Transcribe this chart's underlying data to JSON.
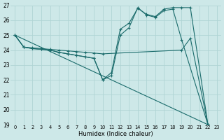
{
  "xlabel": "Humidex (Indice chaleur)",
  "xlim": [
    -0.5,
    23.5
  ],
  "ylim": [
    19,
    27
  ],
  "yticks": [
    19,
    20,
    21,
    22,
    23,
    24,
    25,
    26,
    27
  ],
  "xticks": [
    0,
    1,
    2,
    3,
    4,
    5,
    6,
    7,
    8,
    9,
    10,
    11,
    12,
    13,
    14,
    15,
    16,
    17,
    18,
    19,
    20,
    21,
    22,
    23
  ],
  "bg_color": "#cde8e8",
  "grid_color": "#b0d4d4",
  "line_color": "#1a6b6b",
  "line1_x": [
    0,
    1,
    2,
    3,
    4,
    5,
    6,
    7,
    8,
    9,
    10,
    11,
    12,
    13,
    14,
    15,
    16,
    17,
    18,
    19,
    20,
    22
  ],
  "line1_y": [
    25.0,
    24.2,
    24.1,
    24.05,
    24.0,
    23.85,
    23.75,
    23.65,
    23.55,
    23.45,
    22.0,
    22.5,
    25.4,
    25.8,
    26.8,
    26.4,
    26.25,
    26.75,
    26.85,
    26.85,
    26.85,
    19.0
  ],
  "line2_x": [
    0,
    1,
    2,
    3,
    4,
    5,
    6,
    7,
    8,
    9,
    10,
    11,
    12,
    13,
    14,
    15,
    16,
    17,
    18,
    19,
    22
  ],
  "line2_y": [
    25.0,
    24.2,
    24.1,
    24.05,
    24.0,
    23.85,
    23.75,
    23.65,
    23.55,
    23.45,
    22.0,
    22.3,
    25.0,
    25.5,
    26.85,
    26.35,
    26.2,
    26.65,
    26.75,
    24.7,
    19.0
  ],
  "line3_x": [
    0,
    1,
    2,
    3,
    4,
    5,
    6,
    7,
    8,
    9,
    10,
    19,
    20,
    22
  ],
  "line3_y": [
    25.0,
    24.2,
    24.15,
    24.1,
    24.05,
    24.0,
    23.95,
    23.9,
    23.85,
    23.8,
    23.75,
    24.0,
    24.8,
    19.0
  ],
  "line4_x": [
    0,
    22
  ],
  "line4_y": [
    25.0,
    19.0
  ]
}
